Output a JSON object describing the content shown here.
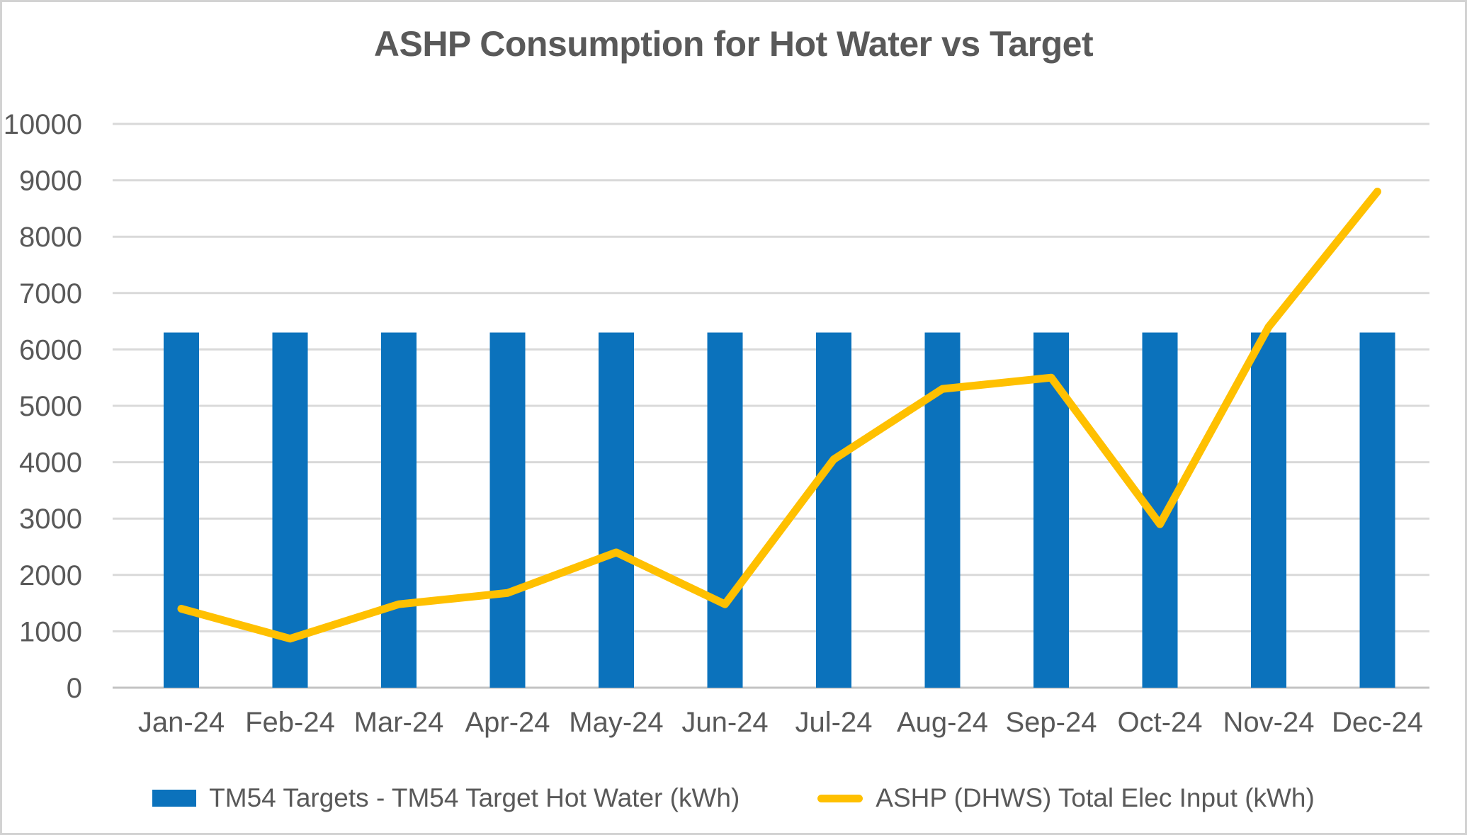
{
  "chart_data": {
    "type": "bar",
    "subtype": "bar-and-line-combo",
    "title": "ASHP Consumption for Hot Water vs Target",
    "categories": [
      "Jan-24",
      "Feb-24",
      "Mar-24",
      "Apr-24",
      "May-24",
      "Jun-24",
      "Jul-24",
      "Aug-24",
      "Sep-24",
      "Oct-24",
      "Nov-24",
      "Dec-24"
    ],
    "series": [
      {
        "name": "TM54 Targets - TM54 Target Hot Water (kWh)",
        "type": "bar",
        "color": "#0b72bc",
        "values": [
          6300,
          6300,
          6300,
          6300,
          6300,
          6300,
          6300,
          6300,
          6300,
          6300,
          6300,
          6300
        ]
      },
      {
        "name": "ASHP (DHWS) Total Elec Input (kWh)",
        "type": "line",
        "color": "#ffc000",
        "values": [
          1400,
          870,
          1480,
          1680,
          2400,
          1480,
          4050,
          5300,
          5500,
          2900,
          6400,
          8800
        ]
      }
    ],
    "y_axis": {
      "min": 0,
      "max": 10000,
      "step": 1000,
      "tick_labels": [
        "0",
        "1000",
        "2000",
        "3000",
        "4000",
        "5000",
        "6000",
        "7000",
        "8000",
        "9000",
        "10000"
      ]
    },
    "xlabel": "",
    "ylabel": "",
    "grid": true,
    "legend_position": "bottom",
    "colors": {
      "text": "#595959",
      "gridline": "#d9d9d9",
      "zero_line": "#c3c3c3"
    }
  }
}
